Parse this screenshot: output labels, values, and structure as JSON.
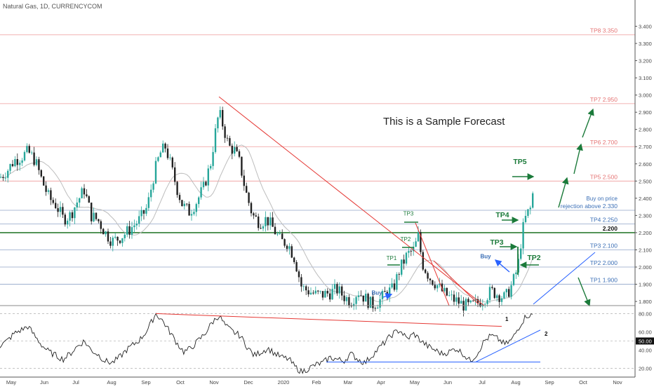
{
  "header": {
    "symbol_label": "Natural Gas, 1D, CURRENCYCOM"
  },
  "annotation": {
    "sample_text": "This is a Sample Forecast"
  },
  "colors": {
    "up": "#26a69a",
    "down": "#222222",
    "tp_line": "#ef9a9a",
    "tp_label": "#e57373",
    "blue_line": "#90a4c8",
    "blue_label": "#3b6fb6",
    "key_level": "#2e7d32",
    "trend_red": "#e53935",
    "trend_blue": "#2962ff",
    "green_arrow": "#1b7a3a",
    "ma": "#bdbdbd",
    "osc": "#222222"
  },
  "chart_data": [
    {
      "type": "line",
      "kind": "candlestick-price",
      "y_axis": {
        "ticks": [
          "3.400",
          "3.300",
          "3.200",
          "3.100",
          "3.000",
          "2.900",
          "2.800",
          "2.700",
          "2.600",
          "2.500",
          "2.400",
          "2.300",
          "2.200",
          "2.100",
          "2.000",
          "1.900",
          "1.800"
        ],
        "range": [
          1.78,
          3.52
        ]
      },
      "x_axis": {
        "ticks": [
          "May",
          "Jun",
          "Jul",
          "Aug",
          "Sep",
          "Oct",
          "Nov",
          "Dec",
          "2020",
          "Feb",
          "Mar",
          "Apr",
          "May",
          "Jun",
          "Jul",
          "Aug",
          "Sep",
          "Oct",
          "Nov"
        ]
      },
      "price_path": [
        [
          0,
          2.52
        ],
        [
          12,
          2.57
        ],
        [
          20,
          2.62
        ],
        [
          30,
          2.64
        ],
        [
          40,
          2.67
        ],
        [
          50,
          2.62
        ],
        [
          60,
          2.5
        ],
        [
          70,
          2.4
        ],
        [
          80,
          2.36
        ],
        [
          90,
          2.28
        ],
        [
          100,
          2.3
        ],
        [
          110,
          2.38
        ],
        [
          120,
          2.45
        ],
        [
          130,
          2.3
        ],
        [
          140,
          2.27
        ],
        [
          150,
          2.2
        ],
        [
          160,
          2.15
        ],
        [
          170,
          2.17
        ],
        [
          180,
          2.2
        ],
        [
          190,
          2.24
        ],
        [
          200,
          2.28
        ],
        [
          210,
          2.35
        ],
        [
          220,
          2.55
        ],
        [
          228,
          2.66
        ],
        [
          236,
          2.7
        ],
        [
          244,
          2.58
        ],
        [
          252,
          2.46
        ],
        [
          260,
          2.36
        ],
        [
          270,
          2.32
        ],
        [
          280,
          2.38
        ],
        [
          290,
          2.46
        ],
        [
          300,
          2.6
        ],
        [
          306,
          2.76
        ],
        [
          312,
          2.9
        ],
        [
          318,
          2.82
        ],
        [
          326,
          2.7
        ],
        [
          334,
          2.68
        ],
        [
          342,
          2.6
        ],
        [
          350,
          2.44
        ],
        [
          360,
          2.3
        ],
        [
          370,
          2.26
        ],
        [
          380,
          2.28
        ],
        [
          390,
          2.22
        ],
        [
          400,
          2.15
        ],
        [
          410,
          2.14
        ],
        [
          420,
          2.05
        ],
        [
          430,
          1.88
        ],
        [
          440,
          1.86
        ],
        [
          450,
          1.84
        ],
        [
          460,
          1.84
        ],
        [
          470,
          1.85
        ],
        [
          480,
          1.87
        ],
        [
          490,
          1.83
        ],
        [
          500,
          1.8
        ],
        [
          510,
          1.86
        ],
        [
          520,
          1.82
        ],
        [
          530,
          1.78
        ],
        [
          540,
          1.8
        ],
        [
          550,
          1.85
        ],
        [
          560,
          1.87
        ],
        [
          570,
          1.99
        ],
        [
          580,
          2.07
        ],
        [
          590,
          2.1
        ],
        [
          596,
          2.18
        ],
        [
          602,
          2.02
        ],
        [
          612,
          1.94
        ],
        [
          622,
          1.9
        ],
        [
          632,
          1.85
        ],
        [
          642,
          1.82
        ],
        [
          652,
          1.8
        ],
        [
          660,
          1.78
        ],
        [
          670,
          1.77
        ],
        [
          680,
          1.79
        ],
        [
          690,
          1.82
        ],
        [
          700,
          1.86
        ],
        [
          710,
          1.84
        ],
        [
          720,
          1.82
        ],
        [
          730,
          1.9
        ],
        [
          738,
          2.0
        ],
        [
          744,
          2.2
        ],
        [
          750,
          2.3
        ],
        [
          756,
          2.34
        ],
        [
          761,
          2.47
        ]
      ],
      "levels": [
        {
          "label": "TP8 3.350",
          "value": 3.35,
          "style": "tp"
        },
        {
          "label": "TP7 2.950",
          "value": 2.95,
          "style": "tp"
        },
        {
          "label": "TP6 2.700",
          "value": 2.7,
          "style": "tp"
        },
        {
          "label": "TP5 2.500",
          "value": 2.5,
          "style": "tp"
        },
        {
          "label": "rejection above 2.330",
          "value": 2.33,
          "style": "blue"
        },
        {
          "label": "TP4 2.250",
          "value": 2.25,
          "style": "blue"
        },
        {
          "label": "2.200",
          "value": 2.2,
          "style": "key"
        },
        {
          "label": "TP3 2.100",
          "value": 2.1,
          "style": "blue"
        },
        {
          "label": "TP2 2.000",
          "value": 2.0,
          "style": "blue"
        },
        {
          "label": "TP1 1.900",
          "value": 1.9,
          "style": "blue"
        }
      ],
      "notes": [
        {
          "text": "Buy on price",
          "color": "blue",
          "anchor": "right-of-chart",
          "value": 2.37
        },
        {
          "text": "TP5",
          "color": "green",
          "at": [
            741,
            2.6
          ]
        },
        {
          "text": "TP4",
          "color": "green",
          "at": [
            716,
            2.29
          ]
        },
        {
          "text": "TP3",
          "color": "green",
          "at": [
            708,
            2.13
          ]
        },
        {
          "text": "TP2",
          "color": "green",
          "at": [
            761,
            2.04
          ]
        },
        {
          "text": "Buy",
          "color": "blue",
          "at": [
            692,
            2.05
          ]
        },
        {
          "text": "Buy",
          "color": "blue",
          "at": [
            537,
            1.84
          ]
        },
        {
          "text": "TP3",
          "color": "green",
          "at": [
            582,
            2.3
          ]
        },
        {
          "text": "TP2",
          "color": "green",
          "at": [
            578,
            2.15
          ]
        },
        {
          "text": "TP1",
          "color": "green",
          "at": [
            558,
            2.04
          ]
        }
      ]
    },
    {
      "type": "line",
      "kind": "oscillator",
      "y_axis": {
        "ticks": [
          "80.00",
          "60.00",
          "50.00",
          "40.00",
          "20.00"
        ],
        "range": [
          12,
          88
        ],
        "highlighted": "50.00"
      },
      "series_path": [
        [
          0,
          45
        ],
        [
          10,
          50
        ],
        [
          20,
          58
        ],
        [
          30,
          62
        ],
        [
          40,
          66
        ],
        [
          50,
          55
        ],
        [
          60,
          45
        ],
        [
          70,
          38
        ],
        [
          80,
          34
        ],
        [
          90,
          30
        ],
        [
          100,
          36
        ],
        [
          110,
          44
        ],
        [
          120,
          50
        ],
        [
          130,
          40
        ],
        [
          140,
          35
        ],
        [
          150,
          28
        ],
        [
          160,
          26
        ],
        [
          170,
          32
        ],
        [
          180,
          40
        ],
        [
          190,
          46
        ],
        [
          200,
          52
        ],
        [
          210,
          62
        ],
        [
          222,
          80
        ],
        [
          232,
          72
        ],
        [
          242,
          60
        ],
        [
          252,
          48
        ],
        [
          262,
          38
        ],
        [
          272,
          42
        ],
        [
          282,
          50
        ],
        [
          292,
          58
        ],
        [
          302,
          70
        ],
        [
          312,
          78
        ],
        [
          322,
          66
        ],
        [
          332,
          60
        ],
        [
          342,
          56
        ],
        [
          352,
          44
        ],
        [
          362,
          34
        ],
        [
          372,
          38
        ],
        [
          382,
          42
        ],
        [
          392,
          36
        ],
        [
          402,
          32
        ],
        [
          412,
          30
        ],
        [
          420,
          22
        ],
        [
          430,
          16
        ],
        [
          440,
          20
        ],
        [
          450,
          24
        ],
        [
          460,
          26
        ],
        [
          470,
          32
        ],
        [
          480,
          30
        ],
        [
          490,
          28
        ],
        [
          500,
          36
        ],
        [
          510,
          30
        ],
        [
          520,
          26
        ],
        [
          530,
          34
        ],
        [
          540,
          42
        ],
        [
          550,
          50
        ],
        [
          560,
          58
        ],
        [
          570,
          62
        ],
        [
          580,
          52
        ],
        [
          590,
          58
        ],
        [
          600,
          50
        ],
        [
          610,
          44
        ],
        [
          620,
          40
        ],
        [
          630,
          36
        ],
        [
          640,
          38
        ],
        [
          650,
          42
        ],
        [
          660,
          36
        ],
        [
          670,
          28
        ],
        [
          680,
          36
        ],
        [
          690,
          50
        ],
        [
          700,
          56
        ],
        [
          710,
          52
        ],
        [
          720,
          46
        ],
        [
          730,
          52
        ],
        [
          740,
          66
        ],
        [
          750,
          78
        ],
        [
          760,
          78
        ]
      ]
    }
  ]
}
